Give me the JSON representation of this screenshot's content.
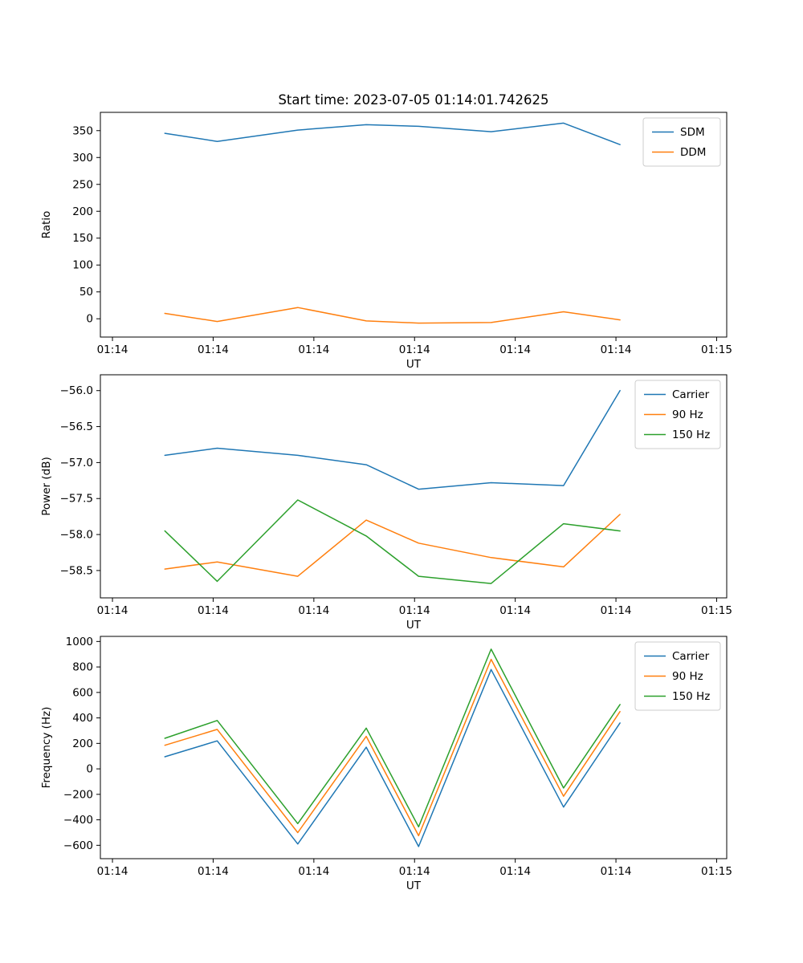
{
  "figure": {
    "background": "#ffffff",
    "title": "Start time: 2023-07-05 01:14:01.742625"
  },
  "chart_data": [
    {
      "type": "line",
      "title": "Start time: 2023-07-05 01:14:01.742625",
      "xlabel": "UT",
      "ylabel": "Ratio",
      "grid": false,
      "legend_position": "upper right",
      "x": [
        5.2,
        10.4,
        18.4,
        25.2,
        30.4,
        37.6,
        44.8,
        50.4
      ],
      "xlim": [
        -1.2,
        61.0
      ],
      "xticks": {
        "values": [
          0,
          10,
          20,
          30,
          40,
          50,
          60
        ],
        "labels": [
          "01:14",
          "01:14",
          "01:14",
          "01:14",
          "01:14",
          "01:14",
          "01:15"
        ]
      },
      "ylim": [
        -34,
        384
      ],
      "yticks": [
        0,
        50,
        100,
        150,
        200,
        250,
        300,
        350
      ],
      "ytick_decimals": 0,
      "series": [
        {
          "name": "SDM",
          "color": "#1f77b4",
          "values": [
            345,
            330,
            351,
            361,
            358,
            348,
            364,
            324
          ]
        },
        {
          "name": "DDM",
          "color": "#ff7f0e",
          "values": [
            10,
            -5,
            21,
            -4,
            -8,
            -7,
            13,
            -2
          ]
        }
      ]
    },
    {
      "type": "line",
      "title": "",
      "xlabel": "UT",
      "ylabel": "Power (dB)",
      "grid": false,
      "legend_position": "upper right",
      "x": [
        5.2,
        10.4,
        18.4,
        25.2,
        30.4,
        37.6,
        44.8,
        50.4
      ],
      "xlim": [
        -1.2,
        61.0
      ],
      "xticks": {
        "values": [
          0,
          10,
          20,
          30,
          40,
          50,
          60
        ],
        "labels": [
          "01:14",
          "01:14",
          "01:14",
          "01:14",
          "01:14",
          "01:14",
          "01:15"
        ]
      },
      "ylim": [
        -58.88,
        -55.78
      ],
      "yticks": [
        -58.5,
        -58.0,
        -57.5,
        -57.0,
        -56.5,
        -56.0
      ],
      "ytick_decimals": 1,
      "series": [
        {
          "name": "Carrier",
          "color": "#1f77b4",
          "values": [
            -56.9,
            -56.8,
            -56.9,
            -57.03,
            -57.37,
            -57.28,
            -57.32,
            -56.0
          ]
        },
        {
          "name": "90 Hz",
          "color": "#ff7f0e",
          "values": [
            -58.48,
            -58.38,
            -58.58,
            -57.8,
            -58.12,
            -58.32,
            -58.45,
            -57.72
          ]
        },
        {
          "name": "150 Hz",
          "color": "#2ca02c",
          "values": [
            -57.95,
            -58.65,
            -57.52,
            -58.02,
            -58.58,
            -58.68,
            -57.85,
            -57.95
          ]
        }
      ]
    },
    {
      "type": "line",
      "title": "",
      "xlabel": "UT",
      "ylabel": "Frequency (Hz)",
      "grid": false,
      "legend_position": "upper right",
      "x": [
        5.2,
        10.4,
        18.4,
        25.2,
        30.4,
        37.6,
        44.8,
        50.4
      ],
      "xlim": [
        -1.2,
        61.0
      ],
      "xticks": {
        "values": [
          0,
          10,
          20,
          30,
          40,
          50,
          60
        ],
        "labels": [
          "01:14",
          "01:14",
          "01:14",
          "01:14",
          "01:14",
          "01:14",
          "01:15"
        ]
      },
      "ylim": [
        -705,
        1040
      ],
      "yticks": [
        -600,
        -400,
        -200,
        0,
        200,
        400,
        600,
        800,
        1000
      ],
      "ytick_decimals": 0,
      "series": [
        {
          "name": "Carrier",
          "color": "#1f77b4",
          "values": [
            95,
            220,
            -590,
            170,
            -610,
            780,
            -300,
            360
          ]
        },
        {
          "name": "90 Hz",
          "color": "#ff7f0e",
          "values": [
            185,
            310,
            -500,
            255,
            -525,
            860,
            -215,
            450
          ]
        },
        {
          "name": "150 Hz",
          "color": "#2ca02c",
          "values": [
            240,
            380,
            -430,
            320,
            -455,
            940,
            -150,
            505
          ]
        }
      ]
    }
  ]
}
